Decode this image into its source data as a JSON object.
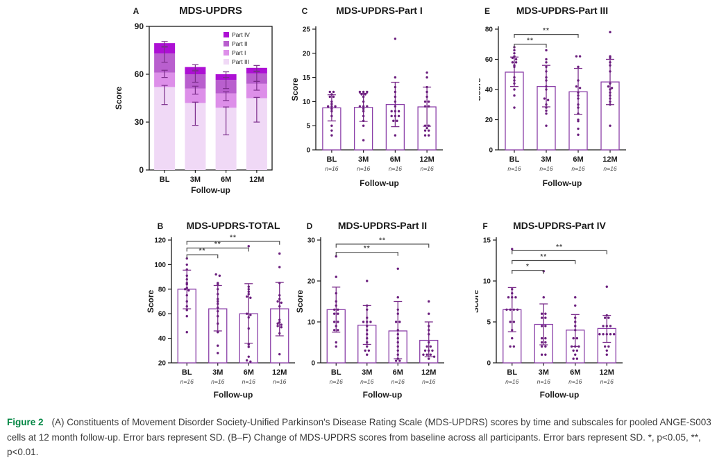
{
  "figure": {
    "caption_label": "Figure 2",
    "caption_text": "(A) Constituents of Movement Disorder Society-Unified Parkinson's Disease Rating Scale (MDS-UPDRS) scores by time and subscales for pooled ANGE-S003 cells at 12 month follow-up. Error bars represent SD. (B–F) Change of MDS-UPDRS scores from baseline across all participants. Error bars represent SD. *, p<0.05, **, p<0.01."
  },
  "colors": {
    "bar_outline": "#8b3fa8",
    "bar_fill": "#ffffff",
    "dot": "#6b1f7e",
    "error_bar": "#7b2d8b",
    "bracket": "#4a4a4a",
    "axis": "#1a1a1a",
    "text": "#1a1a1a",
    "n_label": "#444444",
    "part_iv": "#ad10d4",
    "part_ii": "#b95fce",
    "part_i": "#dd8fe9",
    "part_iii": "#f0d9f6",
    "caption_label": "#008542"
  },
  "chart_data": [
    {
      "id": "A",
      "letter": "A",
      "type": "stacked-bar",
      "title": "MDS-UPDRS",
      "ylabel": "Score",
      "xlabel": "Follow-up",
      "ylim": [
        0,
        90
      ],
      "yticks": [
        0,
        30,
        60,
        90
      ],
      "categories": [
        "BL",
        "3M",
        "6M",
        "12M"
      ],
      "legend": [
        {
          "label": "Part IV",
          "color_key": "part_iv"
        },
        {
          "label": "Part II",
          "color_key": "part_ii"
        },
        {
          "label": "Part I",
          "color_key": "part_i"
        },
        {
          "label": "Part III",
          "color_key": "part_iii"
        }
      ],
      "segments_bottom_to_top": [
        {
          "name": "Part III",
          "color_key": "part_iii",
          "values": [
            52,
            42,
            39,
            45
          ]
        },
        {
          "name": "Part I",
          "color_key": "part_i",
          "values": [
            9,
            9,
            9,
            9
          ]
        },
        {
          "name": "Part II",
          "color_key": "part_ii",
          "values": [
            12,
            9,
            8.5,
            6.5
          ]
        },
        {
          "name": "Part IV",
          "color_key": "part_iv",
          "values": [
            6.5,
            4.5,
            3.5,
            3.5
          ]
        }
      ],
      "whiskers": [
        [
          {
            "y": 52,
            "lo": 41,
            "hi": 53
          },
          {
            "y": 61,
            "lo": 58,
            "hi": 62.5
          },
          {
            "y": 73,
            "lo": 67.5,
            "hi": 77
          },
          {
            "y": 79.5,
            "lo": 77.5,
            "hi": 80.5
          }
        ],
        [
          {
            "y": 42,
            "lo": 28,
            "hi": 42.5
          },
          {
            "y": 51,
            "lo": 47.5,
            "hi": 52.5
          },
          {
            "y": 60,
            "lo": 55,
            "hi": 62.5
          },
          {
            "y": 64.5,
            "lo": 62,
            "hi": 66
          }
        ],
        [
          {
            "y": 39,
            "lo": 22,
            "hi": 39.5
          },
          {
            "y": 48,
            "lo": 43.5,
            "hi": 49
          },
          {
            "y": 56.5,
            "lo": 51,
            "hi": 58
          },
          {
            "y": 60,
            "lo": 58,
            "hi": 61.5
          }
        ],
        [
          {
            "y": 45,
            "lo": 30,
            "hi": 45.5
          },
          {
            "y": 54,
            "lo": 50,
            "hi": 55.5
          },
          {
            "y": 60.5,
            "lo": 55.5,
            "hi": 62
          },
          {
            "y": 64,
            "lo": 61.5,
            "hi": 65.5
          }
        ]
      ],
      "frame": true
    },
    {
      "id": "C",
      "letter": "C",
      "type": "bar-scatter",
      "title": "MDS-UPDRS-Part I",
      "ylabel": "Score",
      "xlabel": "Follow-up",
      "ylim": [
        0,
        25
      ],
      "yticks": [
        0,
        5,
        10,
        15,
        20,
        25
      ],
      "categories": [
        "BL",
        "3M",
        "6M",
        "12M"
      ],
      "n_labels": [
        "n=16",
        "n=16",
        "n=16",
        "n=16"
      ],
      "means": [
        8.7,
        8.8,
        9.4,
        8.9
      ],
      "sd_ranges": [
        [
          6.0,
          11.4
        ],
        [
          5.9,
          11.7
        ],
        [
          4.8,
          14.0
        ],
        [
          4.9,
          13.0
        ]
      ],
      "points": [
        [
          12,
          12,
          11.5,
          11,
          11,
          10,
          9.5,
          9,
          9,
          9,
          8.5,
          8,
          7,
          5,
          4,
          3
        ],
        [
          12,
          12,
          12,
          11.5,
          11.5,
          11,
          10,
          9,
          9,
          9,
          8.5,
          8,
          7,
          6,
          5,
          2
        ],
        [
          23,
          15,
          13,
          12,
          11,
          10,
          9,
          8,
          8,
          8,
          7,
          7,
          7,
          6,
          6,
          3
        ],
        [
          16,
          15,
          13,
          12,
          11,
          10,
          10,
          9,
          9,
          5,
          5,
          4.5,
          4,
          4,
          3,
          3
        ]
      ],
      "brackets": []
    },
    {
      "id": "E",
      "letter": "E",
      "type": "bar-scatter",
      "title": "MDS-UPDRS-Part III",
      "ylabel": "Score",
      "xlabel": "Follow-up",
      "ylim": [
        0,
        80
      ],
      "yticks": [
        0,
        20,
        40,
        60,
        80
      ],
      "categories": [
        "BL",
        "3M",
        "6M",
        "12M"
      ],
      "n_labels": [
        "n=16",
        "n=16",
        "n=16",
        "n=16"
      ],
      "means": [
        51.5,
        42,
        38.5,
        45
      ],
      "sd_ranges": [
        [
          42,
          61.5
        ],
        [
          28.5,
          56
        ],
        [
          23.5,
          54
        ],
        [
          30,
          60
        ]
      ],
      "points": [
        [
          68,
          66,
          64,
          62,
          61,
          60,
          58,
          58,
          56,
          55,
          48,
          46,
          44,
          40,
          36,
          28
        ],
        [
          66,
          60,
          58,
          55,
          52,
          48,
          46,
          42,
          40,
          34,
          33,
          30,
          28,
          26,
          24,
          16
        ],
        [
          62,
          62,
          55,
          46,
          42,
          41,
          38,
          36,
          34,
          30,
          28,
          24,
          20,
          19,
          14,
          10
        ],
        [
          78,
          62,
          61,
          58,
          56,
          52,
          44,
          42,
          41,
          40,
          38,
          36,
          34,
          32,
          30,
          16
        ]
      ],
      "brackets": [
        {
          "a": 0,
          "b": 1,
          "y": 70,
          "stars": "**"
        },
        {
          "a": 0,
          "b": 2,
          "y": 76.5,
          "stars": "**"
        }
      ]
    },
    {
      "id": "B",
      "letter": "B",
      "type": "bar-scatter",
      "title": "MDS-UPDRS-TOTAL",
      "ylabel": "Score",
      "xlabel": "Follow-up",
      "ylim": [
        20,
        120
      ],
      "yticks": [
        20,
        40,
        60,
        80,
        100,
        120
      ],
      "categories": [
        "BL",
        "3M",
        "6M",
        "12M"
      ],
      "n_labels": [
        "n=16",
        "n=16",
        "n=16",
        "n=16"
      ],
      "means": [
        80,
        64,
        60,
        64
      ],
      "sd_ranges": [
        [
          64,
          95.5
        ],
        [
          46,
          83
        ],
        [
          36,
          84.5
        ],
        [
          42,
          85.5
        ]
      ],
      "points": [
        [
          105,
          100,
          96,
          91,
          88,
          85,
          84,
          81,
          80,
          79,
          75,
          70,
          66,
          63,
          58,
          45
        ],
        [
          92,
          91,
          85,
          84,
          80,
          76,
          72,
          70,
          68,
          65,
          62,
          58,
          52,
          45,
          34,
          28
        ],
        [
          115,
          82,
          80,
          78,
          76,
          74,
          73,
          60,
          59,
          57,
          48,
          35,
          33,
          25,
          22,
          21
        ],
        [
          109,
          98,
          85,
          75,
          72,
          70,
          69,
          66,
          55,
          53,
          52,
          51,
          50,
          49,
          44,
          27
        ]
      ],
      "brackets": [
        {
          "a": 0,
          "b": 1,
          "y": 108,
          "stars": "**"
        },
        {
          "a": 0,
          "b": 2,
          "y": 113.5,
          "stars": "**"
        },
        {
          "a": 0,
          "b": 3,
          "y": 119,
          "stars": "**"
        }
      ]
    },
    {
      "id": "D",
      "letter": "D",
      "type": "bar-scatter",
      "title": "MDS-UPDRS-Part II",
      "ylabel": "Score",
      "xlabel": "Follow-up",
      "ylim": [
        0,
        30
      ],
      "yticks": [
        0,
        10,
        20,
        30
      ],
      "categories": [
        "BL",
        "3M",
        "6M",
        "12M"
      ],
      "n_labels": [
        "n=16",
        "n=16",
        "n=16",
        "n=16"
      ],
      "means": [
        13,
        9.2,
        7.8,
        5.5
      ],
      "sd_ranges": [
        [
          7.5,
          18.5
        ],
        [
          4.5,
          14
        ],
        [
          1,
          15
        ],
        [
          1.5,
          10
        ]
      ],
      "points": [
        [
          26,
          21,
          17,
          15,
          14,
          13,
          13,
          12,
          12,
          10,
          10,
          9,
          8,
          8,
          5,
          4
        ],
        [
          20,
          14,
          13,
          11,
          10,
          10,
          10,
          9,
          8,
          7,
          6,
          5,
          4,
          3,
          3,
          2
        ],
        [
          23,
          16,
          13,
          12,
          10,
          10,
          8,
          7,
          6,
          5,
          4,
          3,
          2,
          1,
          0.5,
          0.5
        ],
        [
          15,
          12,
          9,
          8,
          7,
          5,
          4,
          4,
          3,
          3,
          3,
          2,
          2,
          2,
          1.5,
          1
        ]
      ],
      "brackets": [
        {
          "a": 0,
          "b": 2,
          "y": 27,
          "stars": "**"
        },
        {
          "a": 0,
          "b": 3,
          "y": 29,
          "stars": "**"
        }
      ]
    },
    {
      "id": "F",
      "letter": "F",
      "type": "bar-scatter",
      "title": "MDS-UPDRS-Part IV",
      "ylabel": "Score",
      "xlabel": "Follow-up",
      "ylim": [
        0,
        15
      ],
      "yticks": [
        0,
        5,
        10,
        15
      ],
      "categories": [
        "BL",
        "3M",
        "6M",
        "12M"
      ],
      "n_labels": [
        "n=16",
        "n=16",
        "n=16",
        "n=16"
      ],
      "means": [
        6.5,
        4.7,
        4.0,
        4.2
      ],
      "sd_ranges": [
        [
          3.8,
          9.2
        ],
        [
          2.2,
          7.2
        ],
        [
          2.0,
          5.9
        ],
        [
          2.5,
          5.8
        ]
      ],
      "points": [
        [
          13.9,
          9,
          8.5,
          8,
          8,
          8,
          6.5,
          6.5,
          6.5,
          6.5,
          5,
          5,
          4,
          3,
          2,
          2
        ],
        [
          11.2,
          8,
          6,
          6,
          5.5,
          5.5,
          4.5,
          4.5,
          3,
          3,
          2.5,
          2.5,
          2,
          2,
          1,
          1
        ],
        [
          8,
          7,
          5.5,
          5,
          4.5,
          4,
          3,
          3,
          2,
          2,
          2,
          1.5,
          1.5,
          1,
          0.5,
          0.5
        ],
        [
          9.3,
          5.8,
          5.5,
          5.5,
          4.5,
          4.5,
          4.5,
          3.5,
          3.5,
          3.5,
          3.5,
          3.5,
          2,
          2,
          1.5,
          1
        ]
      ],
      "brackets": [
        {
          "a": 0,
          "b": 1,
          "y": 11.3,
          "stars": "*"
        },
        {
          "a": 0,
          "b": 2,
          "y": 12.5,
          "stars": "**"
        },
        {
          "a": 0,
          "b": 3,
          "y": 13.7,
          "stars": "**"
        }
      ]
    }
  ]
}
